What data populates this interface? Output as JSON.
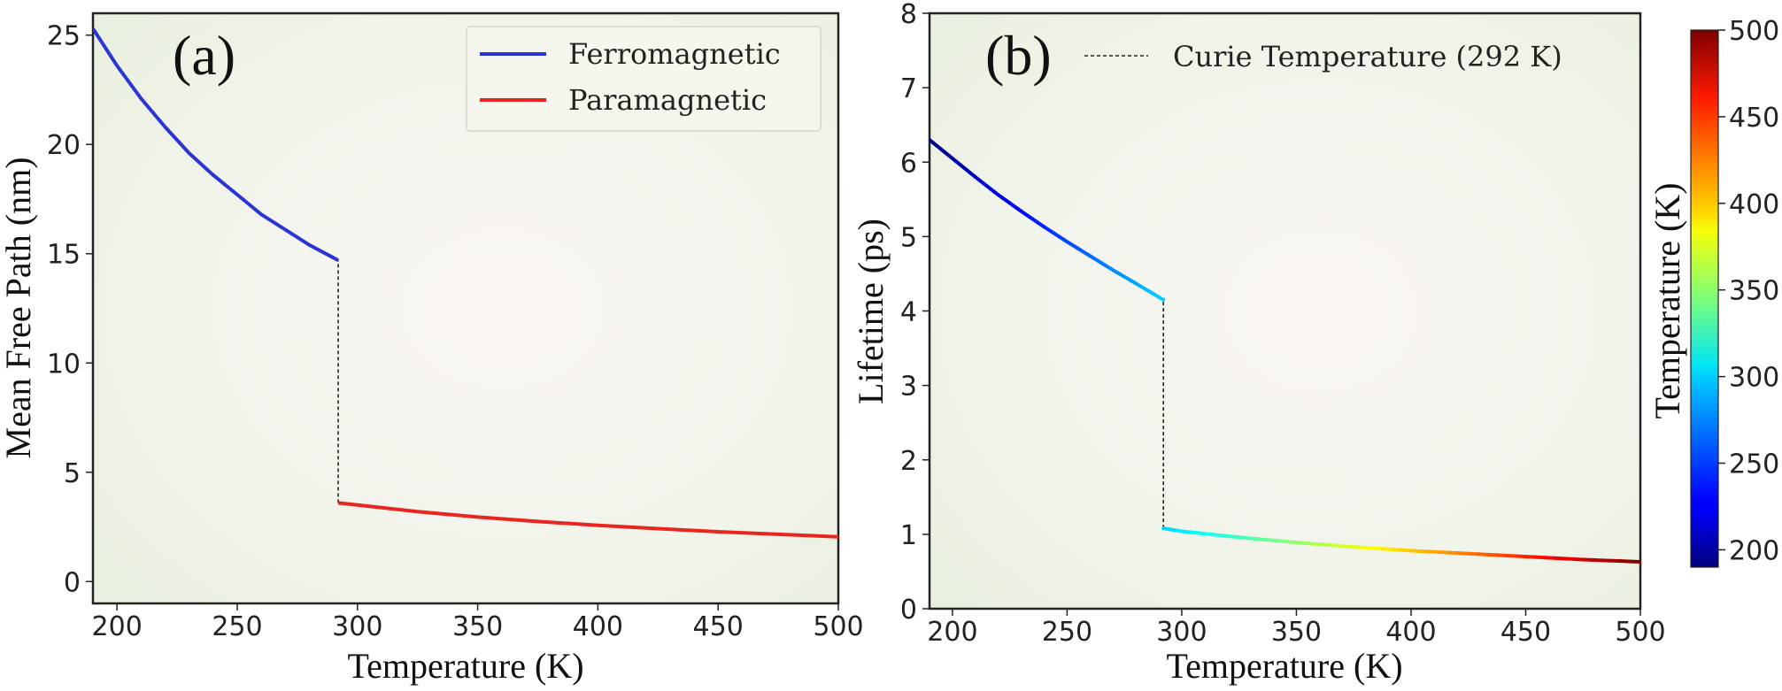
{
  "chart_data": [
    {
      "type": "line",
      "panel_label": "(a)",
      "xlabel": "Temperature (K)",
      "ylabel": "Mean Free Path (nm)",
      "xlim": [
        190,
        500
      ],
      "ylim": [
        -1,
        26
      ],
      "xticks": [
        200,
        250,
        300,
        350,
        400,
        450,
        500
      ],
      "yticks": [
        0,
        5,
        10,
        15,
        20,
        25
      ],
      "grid": false,
      "legend_position": "top-right",
      "series": [
        {
          "name": "Ferromagnetic",
          "color": "#2b35d6",
          "x": [
            190,
            200,
            210,
            220,
            230,
            240,
            250,
            260,
            270,
            280,
            292
          ],
          "y": [
            25.3,
            23.6,
            22.1,
            20.8,
            19.6,
            18.6,
            17.7,
            16.8,
            16.1,
            15.4,
            14.7
          ]
        },
        {
          "name": "Paramagnetic",
          "color": "#e8261e",
          "x": [
            292,
            300,
            325,
            350,
            375,
            400,
            425,
            450,
            475,
            500
          ],
          "y": [
            3.6,
            3.5,
            3.2,
            2.95,
            2.75,
            2.57,
            2.42,
            2.28,
            2.16,
            2.05
          ]
        }
      ],
      "transition_line": {
        "x": 292,
        "y_from": 3.6,
        "y_to": 14.7
      }
    },
    {
      "type": "line",
      "panel_label": "(b)",
      "xlabel": "Temperature (K)",
      "ylabel": "Lifetime (ps)",
      "xlim": [
        190,
        500
      ],
      "ylim": [
        0,
        8
      ],
      "xticks": [
        200,
        250,
        300,
        350,
        400,
        450,
        500
      ],
      "yticks": [
        0,
        1,
        2,
        3,
        4,
        5,
        6,
        7,
        8
      ],
      "grid": false,
      "legend_position": "top-right",
      "legend": [
        {
          "label": "Curie Temperature (292 K)",
          "style": "dashed"
        }
      ],
      "color_by": "temperature",
      "series": [
        {
          "x": [
            190,
            200,
            210,
            220,
            230,
            240,
            250,
            260,
            270,
            280,
            292
          ],
          "y": [
            6.3,
            6.05,
            5.8,
            5.56,
            5.34,
            5.13,
            4.93,
            4.74,
            4.55,
            4.37,
            4.15
          ]
        },
        {
          "x": [
            292,
            300,
            325,
            350,
            375,
            400,
            425,
            450,
            475,
            500
          ],
          "y": [
            1.08,
            1.04,
            0.96,
            0.89,
            0.83,
            0.78,
            0.74,
            0.7,
            0.66,
            0.63
          ]
        }
      ],
      "transition_line": {
        "x": 292,
        "y_from": 1.08,
        "y_to": 4.15
      },
      "colorbar": {
        "label": "Temperature (K)",
        "range": [
          190,
          500
        ],
        "ticks": [
          200,
          250,
          300,
          350,
          400,
          450,
          500
        ],
        "colormap": "jet"
      }
    }
  ]
}
